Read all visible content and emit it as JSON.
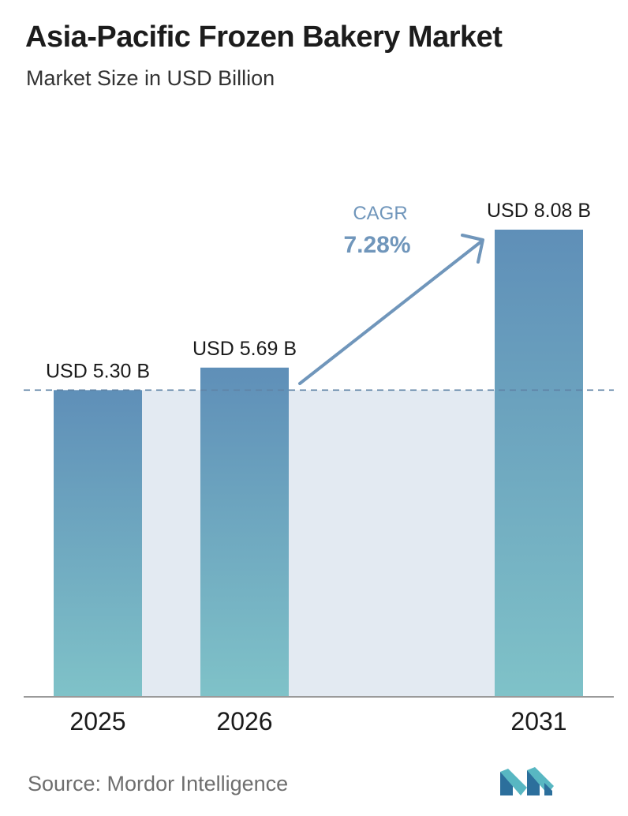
{
  "header": {
    "title": "Asia-Pacific Frozen Bakery Market",
    "subtitle": "Market Size in USD Billion"
  },
  "cagr": {
    "label": "CAGR",
    "value": "7.28%"
  },
  "footer": {
    "source": "Source:  Mordor Intelligence"
  },
  "colors": {
    "bar_top": "#5f8fb8",
    "bar_bottom": "#7fc2c8",
    "band": "#e3eaf2",
    "cagr": "#7096bb",
    "dashed_line": "#5f83a6",
    "logo_dark": "#2c6f9c",
    "logo_light": "#58b7c2"
  },
  "chart_data": {
    "type": "bar",
    "categories": [
      "2025",
      "2026",
      "2031"
    ],
    "values": [
      5.3,
      5.69,
      8.08
    ],
    "data_labels": [
      "USD 5.30 B",
      "USD 5.69 B",
      "USD 8.08 B"
    ],
    "title": "Asia-Pacific Frozen Bakery Market",
    "subtitle": "Market Size in USD Billion",
    "xlabel": "",
    "ylabel": "",
    "grid": false,
    "reference_line": 5.3
  }
}
